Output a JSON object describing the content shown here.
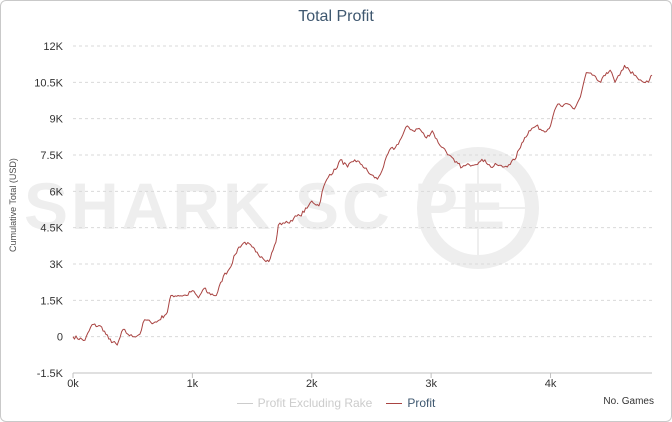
{
  "chart_data": {
    "type": "line",
    "title": "Total Profit",
    "ylabel": "Cumulative Total (USD)",
    "xlabel": "No. Games",
    "ylim": [
      -1500,
      12000
    ],
    "xlim": [
      0,
      4850
    ],
    "y_ticks": [
      -1500,
      0,
      1500,
      3000,
      4500,
      6000,
      7500,
      9000,
      10500,
      12000
    ],
    "y_tick_labels": [
      "-1.5K",
      "0",
      "1.5K",
      "3K",
      "4.5K",
      "6K",
      "7.5K",
      "9K",
      "10.5K",
      "12K"
    ],
    "x_ticks": [
      0,
      1000,
      2000,
      3000,
      4000
    ],
    "x_tick_labels": [
      "0k",
      "1k",
      "2k",
      "3k",
      "4k"
    ],
    "grid": true,
    "legend_position": "bottom",
    "legend": [
      "Profit Excluding Rake",
      "Profit"
    ],
    "series_colors": {
      "Profit Excluding Rake": "#cccccc",
      "Profit": "#a94442"
    },
    "series": [
      {
        "name": "Profit",
        "x": [
          0,
          100,
          160,
          240,
          300,
          370,
          420,
          460,
          500,
          560,
          600,
          650,
          700,
          790,
          820,
          880,
          950,
          1000,
          1050,
          1100,
          1130,
          1200,
          1260,
          1310,
          1360,
          1390,
          1440,
          1500,
          1530,
          1580,
          1640,
          1700,
          1720,
          1760,
          1800,
          1850,
          1900,
          1960,
          2000,
          2060,
          2100,
          2150,
          2200,
          2240,
          2300,
          2360,
          2420,
          2490,
          2550,
          2600,
          2650,
          2700,
          2750,
          2800,
          2850,
          2900,
          2960,
          3010,
          3060,
          3100,
          3150,
          3200,
          3260,
          3320,
          3400,
          3450,
          3500,
          3550,
          3600,
          3650,
          3700,
          3760,
          3820,
          3880,
          3940,
          3990,
          4020,
          4060,
          4100,
          4150,
          4200,
          4250,
          4300,
          4350,
          4390,
          4420,
          4470,
          4500,
          4540,
          4580,
          4620,
          4660,
          4700,
          4740,
          4780,
          4820,
          4850
        ],
        "values": [
          0,
          -150,
          500,
          400,
          -100,
          -350,
          300,
          100,
          0,
          100,
          700,
          600,
          600,
          1000,
          1700,
          1700,
          1700,
          1900,
          1600,
          2000,
          1800,
          1700,
          2500,
          2800,
          3400,
          3700,
          3900,
          3700,
          3500,
          3300,
          3100,
          3900,
          4600,
          4700,
          4700,
          4900,
          5000,
          5300,
          5600,
          5400,
          6200,
          6700,
          6900,
          7300,
          7000,
          7300,
          7100,
          6700,
          6500,
          7000,
          7700,
          7800,
          8200,
          8700,
          8500,
          8600,
          8200,
          8500,
          8000,
          7800,
          7500,
          7200,
          7000,
          7100,
          7200,
          7300,
          7000,
          7100,
          7000,
          7100,
          7300,
          8000,
          8500,
          8700,
          8500,
          8600,
          9100,
          9600,
          9500,
          9600,
          9400,
          9900,
          10900,
          10800,
          10600,
          10500,
          10900,
          11000,
          10500,
          10800,
          11200,
          11000,
          10800,
          10600,
          10500,
          10500,
          10800
        ]
      }
    ]
  },
  "watermark": "SHARK SC  PE"
}
